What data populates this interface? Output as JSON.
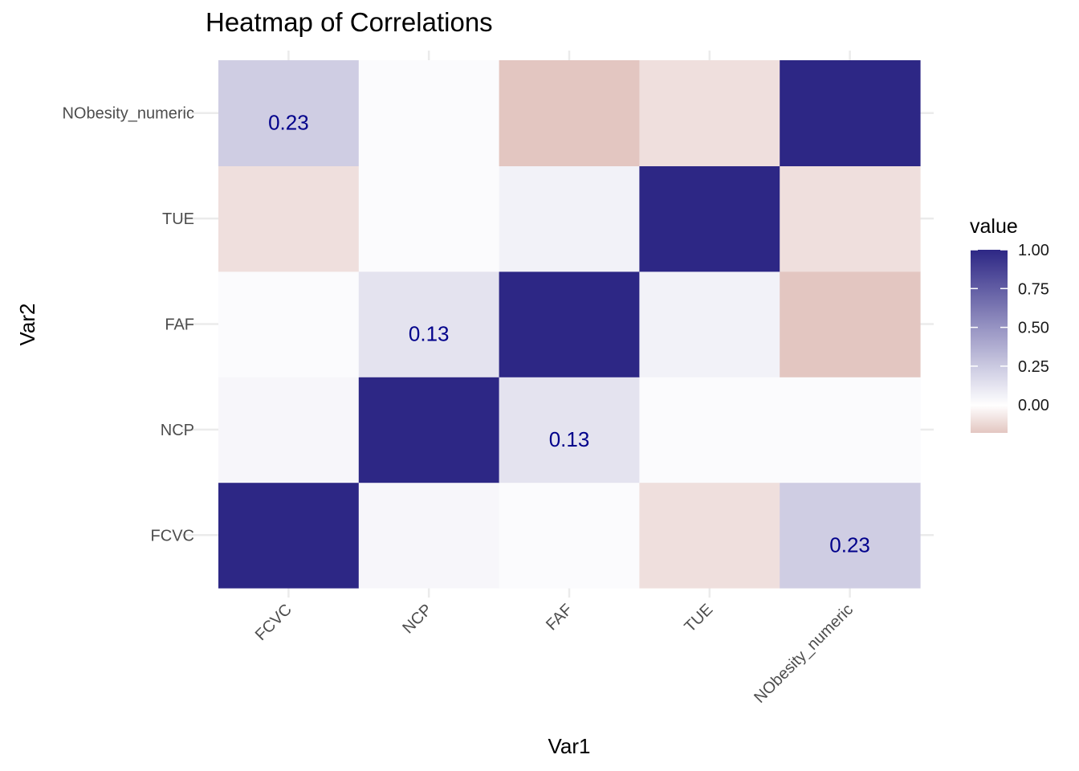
{
  "chart_data": {
    "type": "heatmap",
    "title": "Heatmap of Correlations",
    "xlabel": "Var1",
    "ylabel": "Var2",
    "x_categories": [
      "FCVC",
      "NCP",
      "FAF",
      "TUE",
      "NObesity_numeric"
    ],
    "y_categories": [
      "FCVC",
      "NCP",
      "FAF",
      "TUE",
      "NObesity_numeric"
    ],
    "values": [
      [
        1.0,
        0.04,
        0.02,
        -0.1,
        0.23
      ],
      [
        0.04,
        1.0,
        0.13,
        0.02,
        0.02
      ],
      [
        0.02,
        0.13,
        1.0,
        0.06,
        -0.18
      ],
      [
        -0.1,
        0.02,
        0.06,
        1.0,
        -0.1
      ],
      [
        0.23,
        0.02,
        -0.18,
        -0.1,
        1.0
      ]
    ],
    "labels": [
      {
        "x": "FCVC",
        "y": "NObesity_numeric",
        "text": "0.23"
      },
      {
        "x": "NObesity_numeric",
        "y": "FCVC",
        "text": "0.23"
      },
      {
        "x": "NCP",
        "y": "FAF",
        "text": "0.13"
      },
      {
        "x": "FAF",
        "y": "NCP",
        "text": "0.13"
      }
    ],
    "legend": {
      "title": "value",
      "position": "right",
      "ticks": [
        "1.00",
        "0.75",
        "0.50",
        "0.25",
        "0.00"
      ],
      "tick_values": [
        1.0,
        0.75,
        0.5,
        0.25,
        0.0
      ],
      "range": [
        -0.18,
        1.0
      ]
    },
    "colors": {
      "high": "#2d2785",
      "mid": "#ffffff",
      "low": "#e3c6c1"
    },
    "grid": true
  }
}
